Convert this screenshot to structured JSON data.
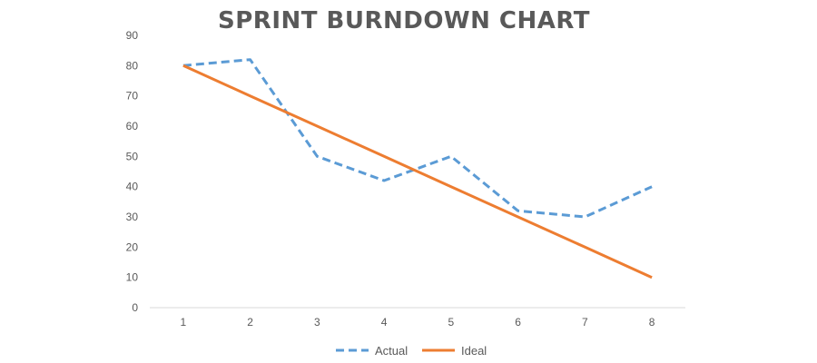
{
  "chart_data": {
    "type": "line",
    "title": "SPRINT BURNDOWN CHART",
    "xlabel": "",
    "ylabel": "",
    "x": [
      1,
      2,
      3,
      4,
      5,
      6,
      7,
      8
    ],
    "ylim": [
      0,
      90
    ],
    "y_ticks": [
      0,
      10,
      20,
      30,
      40,
      50,
      60,
      70,
      80,
      90
    ],
    "grid": false,
    "legend_position": "bottom",
    "series": [
      {
        "name": "Actual",
        "values": [
          80,
          82,
          50,
          42,
          50,
          32,
          30,
          40
        ],
        "color": "#5B9BD5",
        "line_style": "dashed"
      },
      {
        "name": "Ideal",
        "values": [
          80,
          70,
          60,
          50,
          40,
          30,
          20,
          10
        ],
        "color": "#ED7D31",
        "line_style": "solid"
      }
    ]
  }
}
